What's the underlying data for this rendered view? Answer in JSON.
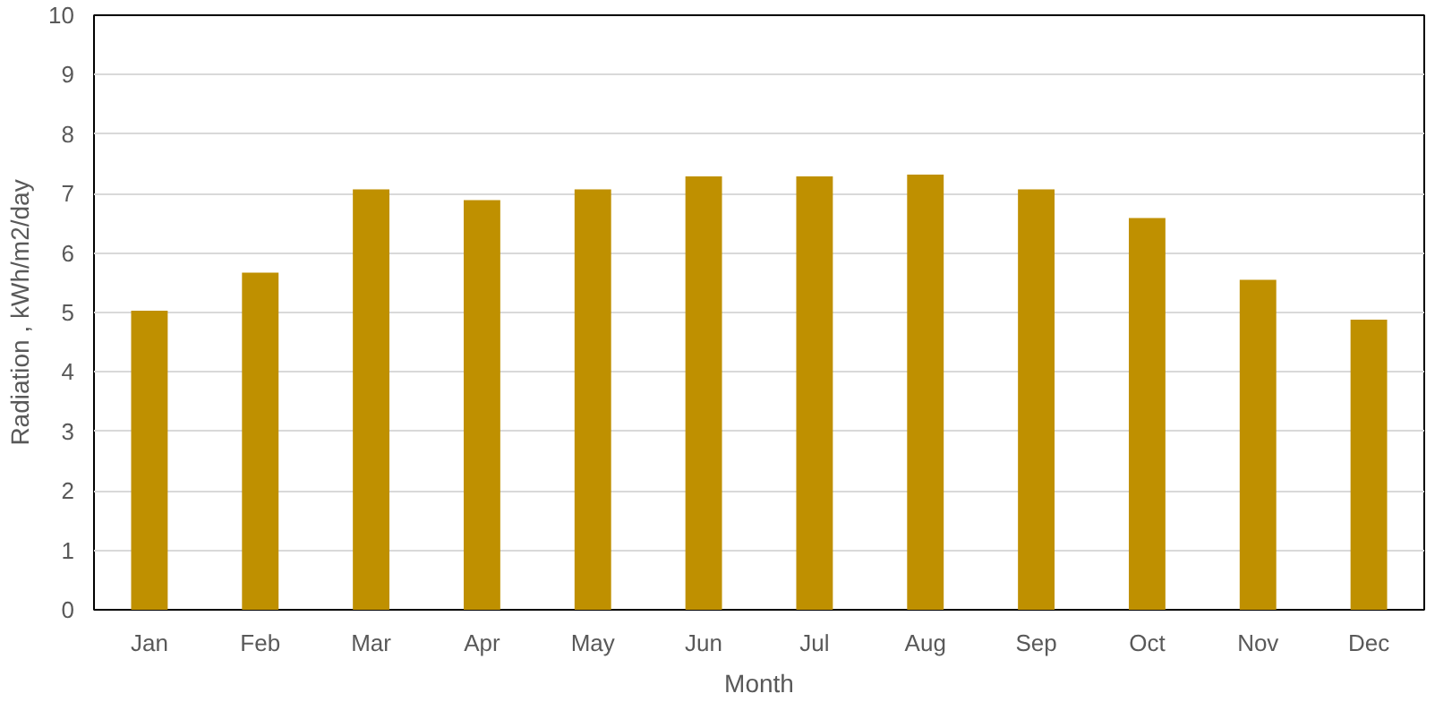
{
  "chart_data": {
    "type": "bar",
    "xlabel": "Month",
    "ylabel": "Radiation , kWh/m2/day",
    "categories": [
      "Jan",
      "Feb",
      "Mar",
      "Apr",
      "May",
      "Jun",
      "Jul",
      "Aug",
      "Sep",
      "Oct",
      "Nov",
      "Dec"
    ],
    "values": [
      5.03,
      5.67,
      7.07,
      6.89,
      7.07,
      7.29,
      7.29,
      7.32,
      7.07,
      6.59,
      5.55,
      4.88
    ],
    "color": "#bf9000",
    "ylim": [
      0,
      10
    ],
    "yticks": [
      0,
      1,
      2,
      3,
      4,
      5,
      6,
      7,
      8,
      9,
      10
    ],
    "grid": "y"
  }
}
